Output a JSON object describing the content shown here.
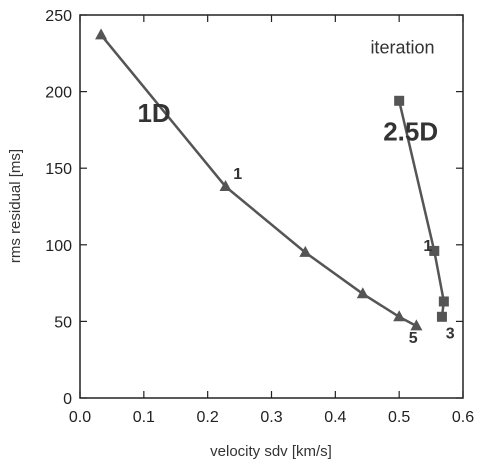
{
  "chart_data": {
    "type": "line",
    "title": "",
    "xlabel": "velocity sdv [km/s]",
    "ylabel": "rms residual [ms]",
    "xlim": [
      0.0,
      0.6
    ],
    "ylim": [
      0,
      250
    ],
    "x_ticks": [
      "0.0",
      "0.1",
      "0.2",
      "0.3",
      "0.4",
      "0.5",
      "0.6"
    ],
    "y_ticks": [
      "0",
      "50",
      "100",
      "150",
      "200",
      "250"
    ],
    "grid": false,
    "series": [
      {
        "name": "1D",
        "marker": "triangle",
        "color": "#555555",
        "x": [
          0.033,
          0.228,
          0.353,
          0.443,
          0.5,
          0.527
        ],
        "y": [
          237,
          138,
          95,
          68,
          53,
          47
        ]
      },
      {
        "name": "2.5D",
        "marker": "square",
        "color": "#555555",
        "x": [
          0.5,
          0.555,
          0.57,
          0.567
        ],
        "y": [
          194,
          96,
          63,
          53
        ]
      }
    ],
    "annotations": [
      {
        "text": "iteration",
        "x": 0.455,
        "y": 225,
        "size": "medium"
      },
      {
        "text": "1D",
        "x": 0.09,
        "y": 180,
        "size": "large"
      },
      {
        "text": "2.5D",
        "x": 0.475,
        "y": 168,
        "size": "large"
      },
      {
        "text": "1",
        "x": 0.24,
        "y": 143,
        "size": "small"
      },
      {
        "text": "5",
        "x": 0.515,
        "y": 36,
        "size": "small"
      },
      {
        "text": "1",
        "x": 0.538,
        "y": 96,
        "size": "small"
      },
      {
        "text": "3",
        "x": 0.573,
        "y": 39,
        "size": "small"
      }
    ]
  }
}
